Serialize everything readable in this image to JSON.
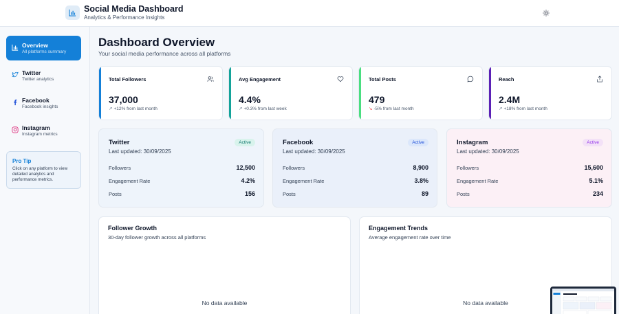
{
  "header": {
    "title": "Social Media Dashboard",
    "subtitle": "Analytics & Performance Insights",
    "logo_icon": "bar-chart-icon",
    "theme_icon": "sun-icon"
  },
  "sidebar": {
    "items": [
      {
        "label": "Overview",
        "sub": "All platforms summary",
        "icon": "bar-chart-icon",
        "active": true
      },
      {
        "label": "Twitter",
        "sub": "Twitter analytics",
        "icon": "twitter-icon"
      },
      {
        "label": "Facebook",
        "sub": "Facebook insights",
        "icon": "facebook-icon"
      },
      {
        "label": "Instagram",
        "sub": "Instagram metrics",
        "icon": "instagram-icon"
      }
    ],
    "protip": {
      "title": "Pro Tip",
      "text": "Click on any platform to view detailed analytics and performance metrics."
    }
  },
  "main": {
    "title": "Dashboard Overview",
    "subtitle": "Your social media performance across all platforms"
  },
  "stats": [
    {
      "label": "Total Followers",
      "value": "37,000",
      "change": "+12% from last month",
      "icon": "users-icon",
      "accent": "#1480d8"
    },
    {
      "label": "Avg Engagement",
      "value": "4.4%",
      "change": "+0.3% from last week",
      "icon": "heart-icon",
      "accent": "#14a39a"
    },
    {
      "label": "Total Posts",
      "value": "479",
      "change": "-5% from last month",
      "icon": "message-icon",
      "accent": "#4ade80"
    },
    {
      "label": "Reach",
      "value": "2.4M",
      "change": "+18% from last month",
      "icon": "share-icon",
      "accent": "#5b21b6"
    }
  ],
  "platforms": [
    {
      "name": "Twitter",
      "updated": "Last updated: 30/09/2025",
      "badge": "Active",
      "followers_label": "Followers",
      "followers": "12,500",
      "engagement_label": "Engagement Rate",
      "engagement": "4.2%",
      "posts_label": "Posts",
      "posts": "156"
    },
    {
      "name": "Facebook",
      "updated": "Last updated: 30/09/2025",
      "badge": "Active",
      "followers_label": "Followers",
      "followers": "8,900",
      "engagement_label": "Engagement Rate",
      "engagement": "3.8%",
      "posts_label": "Posts",
      "posts": "89"
    },
    {
      "name": "Instagram",
      "updated": "Last updated: 30/09/2025",
      "badge": "Active",
      "followers_label": "Followers",
      "followers": "15,600",
      "engagement_label": "Engagement Rate",
      "engagement": "5.1%",
      "posts_label": "Posts",
      "posts": "234"
    }
  ],
  "charts": [
    {
      "title": "Follower Growth",
      "subtitle": "30-day follower growth across all platforms",
      "empty": "No data available"
    },
    {
      "title": "Engagement Trends",
      "subtitle": "Average engagement rate over time",
      "empty": "No data available"
    }
  ]
}
